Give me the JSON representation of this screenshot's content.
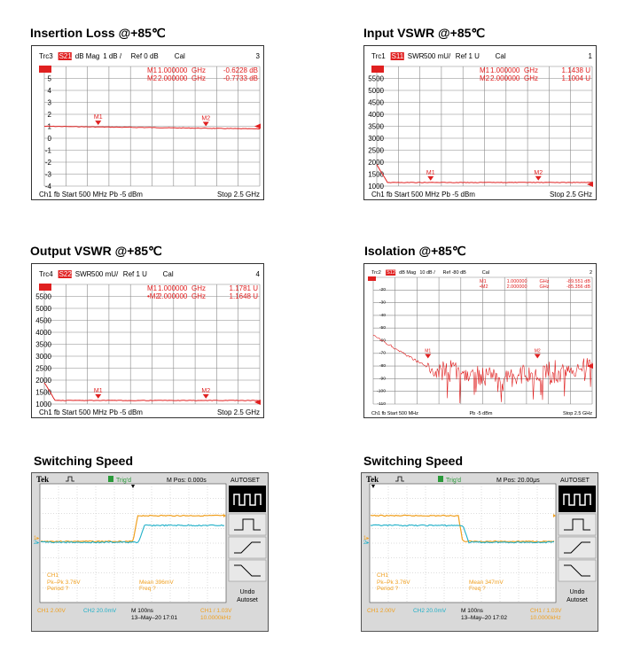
{
  "charts": [
    {
      "id": "insertion",
      "title": "Insertion Loss @+85℃",
      "header": {
        "trace": "Trc3",
        "param": "S21",
        "format": "dB Mag",
        "scale": "1 dB /",
        "ref": "Ref 0 dB",
        "cal": "Cal",
        "num": "3"
      },
      "marker_readouts": [
        {
          "name": "M1",
          "freq": "1.000000",
          "unit": "GHz",
          "value": "-0.6228 dB"
        },
        {
          "name": "M2",
          "freq": "2.000000",
          "unit": "GHz",
          "value": "-0.7733 dB"
        }
      ],
      "y_tick_labels": [
        "5",
        "4",
        "3",
        "2",
        "1",
        "0",
        "-1",
        "-2",
        "-3",
        "-4"
      ],
      "footer": {
        "ch": "Ch1",
        "fb": "fb",
        "start": "Start",
        "start_val": "500 MHz",
        "pb": "Pb",
        "power": "-5 dBm",
        "stop": "Stop",
        "stop_val": "2.5 GHz"
      },
      "markers": [
        {
          "name": "M1"
        },
        {
          "name": "M2"
        }
      ]
    },
    {
      "id": "input_vswr",
      "title": "Input VSWR @+85℃",
      "header": {
        "trace": "Trc1",
        "param": "S11",
        "format": "SWR",
        "scale": "500 mU/",
        "ref": "Ref 1 U",
        "cal": "Cal",
        "num": "1"
      },
      "marker_readouts": [
        {
          "name": "M1",
          "freq": "1.000000",
          "unit": "GHz",
          "value": "1.1438 U"
        },
        {
          "name": "M2",
          "freq": "2.000000",
          "unit": "GHz",
          "value": "1.1004 U"
        }
      ],
      "y_tick_labels": [
        "5500",
        "5000",
        "4500",
        "4000",
        "3500",
        "3000",
        "2500",
        "2000",
        "1500",
        "1000"
      ],
      "footer": {
        "ch": "Ch1",
        "fb": "fb",
        "start": "Start",
        "start_val": "500 MHz",
        "pb": "Pb",
        "power": "-5 dBm",
        "stop": "Stop",
        "stop_val": "2.5 GHz"
      },
      "markers": [
        {
          "name": "M1"
        },
        {
          "name": "M2"
        }
      ]
    },
    {
      "id": "output_vswr",
      "title": "Output VSWR @+85℃",
      "header": {
        "trace": "Trc4",
        "param": "S22",
        "format": "SWR",
        "scale": "500 mU/",
        "ref": "Ref 1 U",
        "cal": "Cal",
        "num": "4"
      },
      "marker_readouts": [
        {
          "name": "M1",
          "freq": "1.000000",
          "unit": "GHz",
          "value": "1.1781 U"
        },
        {
          "name": "•M2",
          "freq": "2.000000",
          "unit": "GHz",
          "value": "1.1648 U"
        }
      ],
      "y_tick_labels": [
        "5500",
        "5000",
        "4500",
        "4000",
        "3500",
        "3000",
        "2500",
        "2000",
        "1500",
        "1000"
      ],
      "footer": {
        "ch": "Ch1",
        "fb": "fb",
        "start": "Start",
        "start_val": "500 MHz",
        "pb": "Pb",
        "power": "-5 dBm",
        "stop": "Stop",
        "stop_val": "2.5 GHz"
      },
      "markers": [
        {
          "name": "M1"
        },
        {
          "name": "M2"
        }
      ]
    },
    {
      "id": "isolation",
      "title": "Isolation @+85℃",
      "header": {
        "trace": "Trc2",
        "param": "S12",
        "format": "dB Mag",
        "scale": "10 dB /",
        "ref": "Ref -80 dB",
        "cal": "Cal",
        "num": "2"
      },
      "marker_readouts": [
        {
          "name": "M1",
          "freq": "1.000000",
          "unit": "GHz",
          "value": "-89.551 dB"
        },
        {
          "name": "•M2",
          "freq": "2.000000",
          "unit": "GHz",
          "value": "-85.356 dB"
        }
      ],
      "y_tick_labels": [
        "-20",
        "-30",
        "-40",
        "-50",
        "-60",
        "-70",
        "-80",
        "-90",
        "-100",
        "-110"
      ],
      "footer": {
        "ch": "Ch1",
        "fb": "fb",
        "start": "Start",
        "start_val": "500 MHz",
        "pb": "Pb",
        "power": "-5 dBm",
        "stop": "Stop",
        "stop_val": "2.5 GHz"
      },
      "markers": [
        {
          "name": "M1"
        },
        {
          "name": "M2"
        }
      ]
    }
  ],
  "scopes": [
    {
      "id": "switch_on",
      "title": "Switching Speed",
      "brand": "Tek",
      "trig_state": "Trig'd",
      "mpos": "M Pos: 0.000s",
      "autoset": "AUTOSET",
      "undo": "Undo",
      "undo2": "Autoset",
      "ch1_label": "CH1",
      "stats_left": [
        "Pk–Pk 3.76V",
        "Period ?"
      ],
      "stats_right": [
        "Mean 396mV",
        "Freq ?"
      ],
      "bottom_ch1": "CH1  2.00V",
      "bottom_ch2": "CH2  20.0mV",
      "bottom_m": "M 100ns",
      "bottom_date": "13–May–20 17:01",
      "bottom_trig": "CH1  /  1.03V",
      "bottom_freq": "10.0000kHz",
      "edge": "rising",
      "colors": {
        "ch1": "#f0a020",
        "ch2": "#20b0c8"
      }
    },
    {
      "id": "switch_off",
      "title": "Switching Speed",
      "brand": "Tek",
      "trig_state": "Trig'd",
      "mpos": "M Pos: 20.00μs",
      "autoset": "AUTOSET",
      "undo": "Undo",
      "undo2": "Autoset",
      "ch1_label": "CH1",
      "stats_left": [
        "Pk–Pk 3.76V",
        "Period ?"
      ],
      "stats_right": [
        "Mean 347mV",
        "Freq ?"
      ],
      "bottom_ch1": "CH1  2.00V",
      "bottom_ch2": "CH2  20.0mV",
      "bottom_m": "M 100ns",
      "bottom_date": "13–May–20 17:02",
      "bottom_trig": "CH1  /  1.03V",
      "bottom_freq": "10.0000kHz",
      "edge": "falling",
      "colors": {
        "ch1": "#f0a020",
        "ch2": "#20b0c8"
      }
    }
  ],
  "colors": {
    "trace": "#e02020",
    "label": "#e02020",
    "grid": "#888888"
  }
}
